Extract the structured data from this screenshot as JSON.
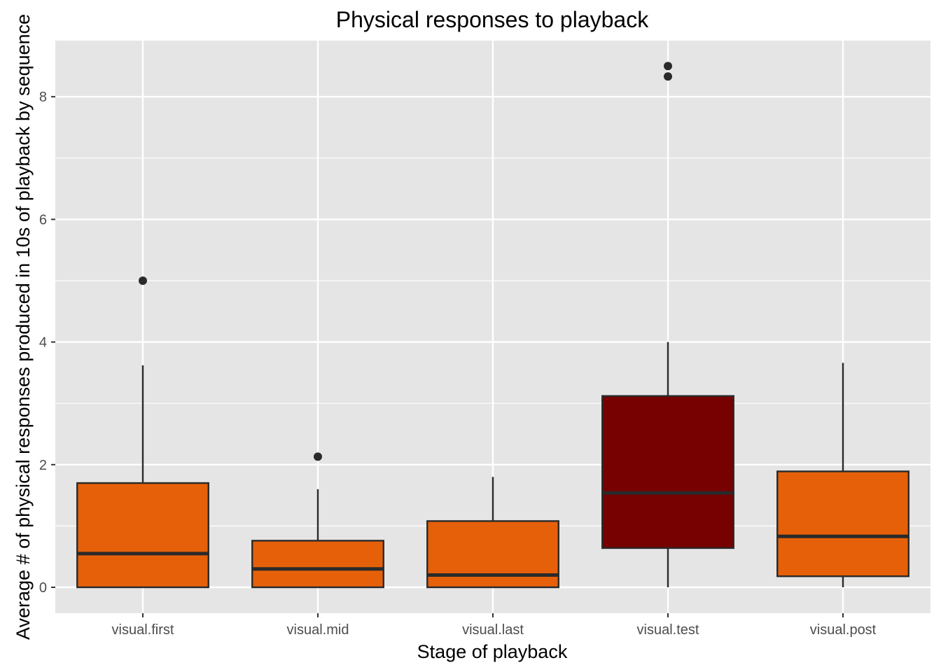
{
  "chart_data": {
    "type": "boxplot",
    "title": "Physical responses to playback",
    "xlabel": "Stage of playback",
    "ylabel": "Average # of physical responses produced in 10s of playback by sequence",
    "ylim": [
      -0.4,
      9.0
    ],
    "yticks": [
      0,
      2,
      4,
      6,
      8
    ],
    "grid": true,
    "categories": [
      "visual.first",
      "visual.mid",
      "visual.last",
      "visual.test",
      "visual.post"
    ],
    "boxes": [
      {
        "category": "visual.first",
        "min": 0,
        "q1": 0,
        "median": 0.55,
        "q3": 1.7,
        "max": 3.62,
        "outliers": [
          5.0
        ],
        "fill": "#E6600A"
      },
      {
        "category": "visual.mid",
        "min": 0,
        "q1": 0,
        "median": 0.3,
        "q3": 0.76,
        "max": 1.6,
        "outliers": [
          2.13
        ],
        "fill": "#E6600A"
      },
      {
        "category": "visual.last",
        "min": 0,
        "q1": 0,
        "median": 0.2,
        "q3": 1.08,
        "max": 1.8,
        "outliers": [],
        "fill": "#E6600A"
      },
      {
        "category": "visual.test",
        "min": 0,
        "q1": 0.64,
        "median": 1.54,
        "q3": 3.12,
        "max": 4.0,
        "outliers": [
          8.33,
          8.5
        ],
        "fill": "#770000"
      },
      {
        "category": "visual.post",
        "min": 0,
        "q1": 0.18,
        "median": 0.83,
        "q3": 1.89,
        "max": 3.66,
        "outliers": [],
        "fill": "#E6600A"
      }
    ],
    "colors": {
      "panel_background": "#E5E5E5",
      "grid": "#FFFFFF",
      "box_outline": "#2A2A2A"
    }
  }
}
